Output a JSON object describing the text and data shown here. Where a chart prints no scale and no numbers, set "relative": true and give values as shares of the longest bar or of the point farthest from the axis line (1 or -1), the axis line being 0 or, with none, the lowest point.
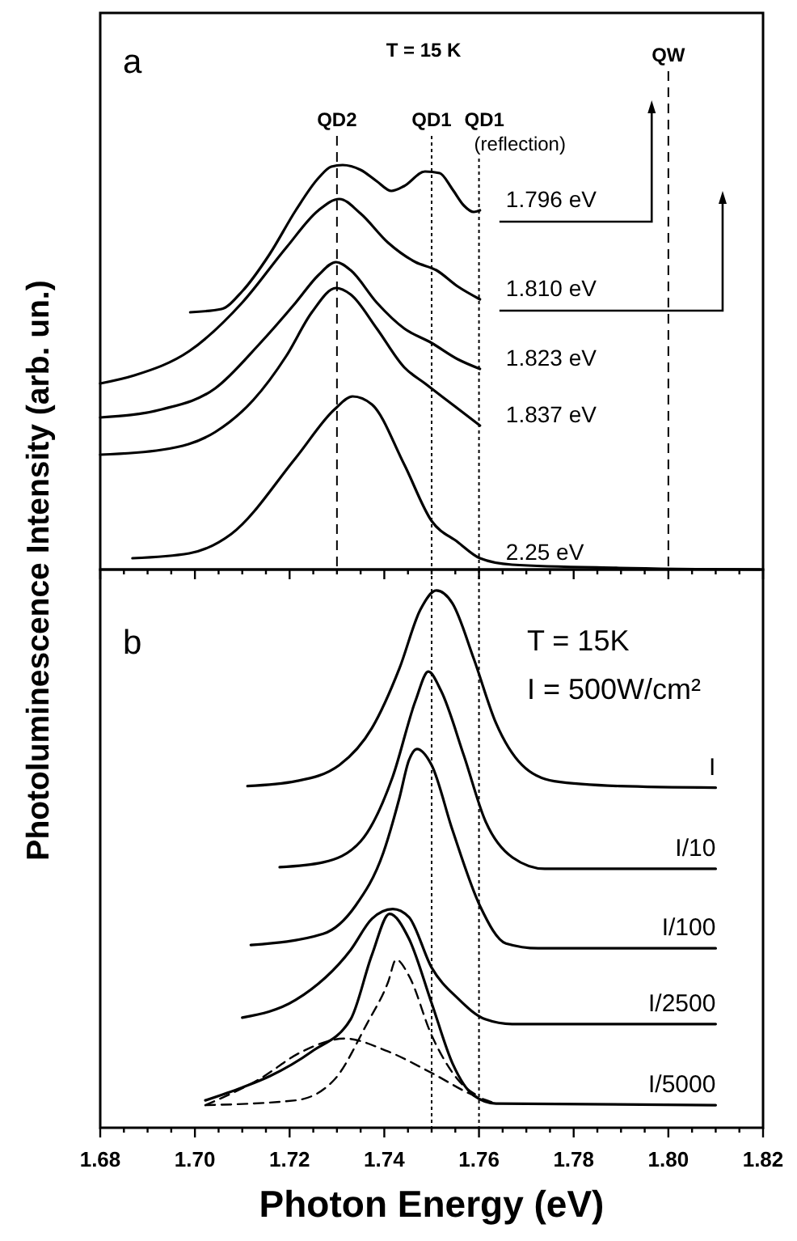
{
  "chart_data": [
    {
      "type": "line",
      "relative": true,
      "xlim": [
        1.68,
        1.82
      ],
      "tick_labels": false,
      "annotations": [
        "a",
        "T = 15 K"
      ],
      "ref_lines": [
        {
          "axis": "x",
          "value": 1.73,
          "label": "QD2",
          "line_style": "dashed"
        },
        {
          "axis": "x",
          "value": 1.75,
          "label": "QD1",
          "line_style": "dotted"
        },
        {
          "axis": "x",
          "value": 1.76,
          "label": "QD1 (reflection)",
          "line_style": "dotted"
        },
        {
          "axis": "x",
          "value": 1.8,
          "label": "QW",
          "line_style": "dashed"
        }
      ],
      "series": [
        {
          "name": "1.796 eV",
          "color": "#000000",
          "x": [
            1.699,
            1.7056,
            1.71,
            1.7158,
            1.7213,
            1.7261,
            1.7288,
            1.7312,
            1.735,
            1.7384,
            1.7415,
            1.7442,
            1.7486,
            1.7517,
            1.7544,
            1.7568,
            1.7589,
            1.7602
          ],
          "values": [
            0.636,
            0.644,
            0.688,
            0.78,
            0.888,
            0.968,
            0.996,
            1,
            0.988,
            0.96,
            0.936,
            0.948,
            0.984,
            0.98,
            0.94,
            0.9,
            0.884,
            0.888
          ]
        },
        {
          "name": "1.810 eV",
          "color": "#000000",
          "x": [
            1.68,
            1.6872,
            1.6988,
            1.71,
            1.7193,
            1.7261,
            1.7305,
            1.735,
            1.7408,
            1.7466,
            1.751,
            1.7555,
            1.7602
          ],
          "values": [
            0.46,
            0.48,
            0.54,
            0.66,
            0.796,
            0.888,
            0.916,
            0.88,
            0.808,
            0.76,
            0.74,
            0.7,
            0.668
          ]
        },
        {
          "name": "1.823 eV",
          "color": "#000000",
          "x": [
            1.68,
            1.693,
            1.7043,
            1.7135,
            1.7213,
            1.7261,
            1.7298,
            1.7329,
            1.7384,
            1.7442,
            1.75,
            1.7555,
            1.7602
          ],
          "values": [
            0.376,
            0.396,
            0.448,
            0.556,
            0.66,
            0.728,
            0.76,
            0.74,
            0.66,
            0.596,
            0.56,
            0.52,
            0.496
          ]
        },
        {
          "name": "1.837 eV",
          "color": "#000000",
          "x": [
            1.68,
            1.693,
            1.7043,
            1.7124,
            1.7193,
            1.7247,
            1.7298,
            1.7329,
            1.7384,
            1.7442,
            1.7486,
            1.7544,
            1.7602
          ],
          "values": [
            0.284,
            0.296,
            0.34,
            0.42,
            0.528,
            0.636,
            0.696,
            0.68,
            0.596,
            0.5,
            0.46,
            0.408,
            0.356
          ]
        },
        {
          "name": "2.25 eV",
          "color": "#000000",
          "x": [
            1.6868,
            1.6988,
            1.7077,
            1.7213,
            1.7295,
            1.7333,
            1.7374,
            1.7442,
            1.75,
            1.7555,
            1.7602,
            1.767,
            1.7896,
            1.8193
          ],
          "values": [
            0.028,
            0.04,
            0.088,
            0.276,
            0.396,
            0.428,
            0.408,
            0.26,
            0.12,
            0.068,
            0.028,
            0.012,
            0.004,
            0
          ]
        }
      ]
    },
    {
      "type": "line",
      "relative": true,
      "xlim": [
        1.68,
        1.82
      ],
      "tick_labels": "x",
      "xlabel": "Photon Energy (eV)",
      "ylabel": "Photoluminescence Intensity (arb. un.)",
      "xticks": [
        {
          "value": 1.68,
          "label": "1.68"
        },
        {
          "value": 1.685,
          "label": null
        },
        {
          "value": 1.69,
          "label": null
        },
        {
          "value": 1.695,
          "label": null
        },
        {
          "value": 1.7,
          "label": "1.70"
        },
        {
          "value": 1.705,
          "label": null
        },
        {
          "value": 1.71,
          "label": null
        },
        {
          "value": 1.715,
          "label": null
        },
        {
          "value": 1.72,
          "label": "1.72"
        },
        {
          "value": 1.725,
          "label": null
        },
        {
          "value": 1.73,
          "label": null
        },
        {
          "value": 1.735,
          "label": null
        },
        {
          "value": 1.74,
          "label": "1.74"
        },
        {
          "value": 1.745,
          "label": null
        },
        {
          "value": 1.75,
          "label": null
        },
        {
          "value": 1.755,
          "label": null
        },
        {
          "value": 1.76,
          "label": "1.76"
        },
        {
          "value": 1.765,
          "label": null
        },
        {
          "value": 1.77,
          "label": null
        },
        {
          "value": 1.775,
          "label": null
        },
        {
          "value": 1.78,
          "label": "1.78"
        },
        {
          "value": 1.785,
          "label": null
        },
        {
          "value": 1.79,
          "label": null
        },
        {
          "value": 1.795,
          "label": null
        },
        {
          "value": 1.8,
          "label": "1.80"
        },
        {
          "value": 1.805,
          "label": null
        },
        {
          "value": 1.81,
          "label": null
        },
        {
          "value": 1.815,
          "label": null
        },
        {
          "value": 1.82,
          "label": "1.82"
        }
      ],
      "annotations": [
        "b",
        "T = 15K",
        "I = 500W/cm²"
      ],
      "ref_lines": [
        {
          "axis": "x",
          "value": 1.75,
          "line_style": "dotted"
        },
        {
          "axis": "x",
          "value": 1.76,
          "line_style": "dotted"
        }
      ],
      "series": [
        {
          "name": "I",
          "color": "#000000",
          "x": [
            1.7111,
            1.7213,
            1.7305,
            1.7374,
            1.7432,
            1.7476,
            1.751,
            1.7544,
            1.7589,
            1.7636,
            1.7691,
            1.7759,
            1.7896,
            1.81
          ],
          "values": [
            0.636,
            0.645,
            0.675,
            0.744,
            0.855,
            0.964,
            1,
            0.976,
            0.873,
            0.753,
            0.675,
            0.645,
            0.636,
            0.633
          ]
        },
        {
          "name": "I/10",
          "color": "#000000",
          "x": [
            1.7179,
            1.7271,
            1.735,
            1.7418,
            1.7466,
            1.7493,
            1.752,
            1.7568,
            1.7613,
            1.7671,
            1.7739,
            1.81
          ],
          "values": [
            0.485,
            0.494,
            0.533,
            0.654,
            0.795,
            0.849,
            0.813,
            0.693,
            0.572,
            0.503,
            0.482,
            0.482
          ]
        },
        {
          "name": "I/100",
          "color": "#000000",
          "x": [
            1.7118,
            1.7271,
            1.7339,
            1.7398,
            1.7432,
            1.7452,
            1.7469,
            1.75,
            1.7544,
            1.7602,
            1.7657,
            1.7725,
            1.81
          ],
          "values": [
            0.34,
            0.361,
            0.413,
            0.512,
            0.614,
            0.684,
            0.705,
            0.675,
            0.554,
            0.413,
            0.343,
            0.334,
            0.334
          ]
        },
        {
          "name": "I/2500",
          "color": "#000000",
          "x": [
            1.71,
            1.7213,
            1.7329,
            1.7374,
            1.7418,
            1.7452,
            1.75,
            1.7555,
            1.7613,
            1.767,
            1.81
          ],
          "values": [
            0.205,
            0.238,
            0.331,
            0.389,
            0.407,
            0.392,
            0.298,
            0.241,
            0.202,
            0.193,
            0.193
          ]
        },
        {
          "name": "I/5000",
          "color": "#000000",
          "x": [
            1.7022,
            1.71,
            1.7158,
            1.7247,
            1.7329,
            1.7374,
            1.7411,
            1.7452,
            1.75,
            1.7544,
            1.7589,
            1.7636,
            1.81
          ],
          "values": [
            0.051,
            0.075,
            0.096,
            0.142,
            0.202,
            0.322,
            0.398,
            0.352,
            0.232,
            0.12,
            0.06,
            0.045,
            0.042
          ]
        },
        {
          "color": "#000000",
          "line_style": "dashed",
          "x": [
            1.7022,
            1.7213,
            1.7295,
            1.7363,
            1.7408,
            1.7425,
            1.7452,
            1.75,
            1.7555,
            1.7602
          ],
          "values": [
            0.042,
            0.051,
            0.09,
            0.193,
            0.271,
            0.313,
            0.283,
            0.172,
            0.09,
            0.057
          ]
        },
        {
          "color": "#000000",
          "line_style": "dashed",
          "x": [
            1.7022,
            1.7135,
            1.7227,
            1.7316,
            1.7408,
            1.75,
            1.7589,
            1.7636
          ],
          "values": [
            0.042,
            0.09,
            0.142,
            0.166,
            0.142,
            0.102,
            0.06,
            0.045
          ]
        }
      ]
    }
  ]
}
